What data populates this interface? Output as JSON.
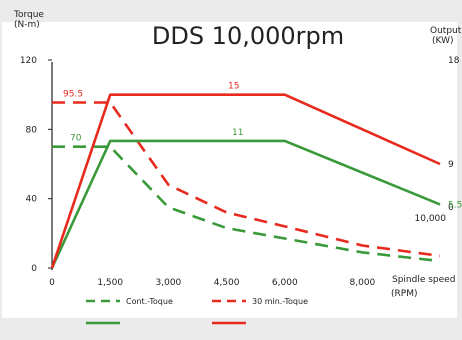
{
  "chart_data": {
    "type": "line",
    "title": "DDS  10,000rpm",
    "y_left": {
      "label_line1": "Torque",
      "label_line2": "(N-m)",
      "range": [
        0,
        120
      ],
      "ticks": [
        "0",
        "40",
        "80",
        "120"
      ]
    },
    "y_right": {
      "label_line1": "Output",
      "label_line2": "(KW)",
      "range": [
        0,
        18
      ],
      "visible_ticks": [
        "0",
        "5.5",
        "9",
        "18"
      ]
    },
    "x_axis": {
      "label_line1": "Spindle speed",
      "label_line2": "(RPM)",
      "range": [
        0,
        10000
      ],
      "ticks": [
        "0",
        "1,500",
        "3,000",
        "4,500",
        "6,000",
        "8,000",
        "10,000"
      ]
    },
    "grid": false,
    "legend_position": "bottom",
    "series": [
      {
        "name": "Cont.-Toque",
        "color": "#3a9a3a",
        "style": "dashed",
        "axis": "left",
        "x": [
          0,
          1500,
          3000,
          4500,
          6000,
          8000,
          10000
        ],
        "y": [
          70,
          70,
          35,
          23,
          17,
          9,
          4
        ]
      },
      {
        "name": "30 min.-Toque",
        "color": "#e82a1e",
        "style": "dashed",
        "axis": "left",
        "x": [
          0,
          1500,
          3000,
          4500,
          6000,
          8000,
          10000
        ],
        "y": [
          95.5,
          95.5,
          48,
          32,
          24,
          13,
          7
        ]
      },
      {
        "name": "",
        "color": "#3a9a3a",
        "style": "solid",
        "axis": "right",
        "x": [
          0,
          1500,
          6000,
          10000
        ],
        "y": [
          0,
          11,
          11,
          5.5
        ]
      },
      {
        "name": "",
        "color": "#e82a1e",
        "style": "solid",
        "axis": "right",
        "x": [
          0,
          1500,
          6000,
          10000
        ],
        "y": [
          0,
          15,
          15,
          9
        ]
      }
    ],
    "annotations": [
      {
        "text": "95.5",
        "color": "#e82a1e"
      },
      {
        "text": "70",
        "color": "#3a9a3a"
      },
      {
        "text": "15",
        "color": "#e82a1e"
      },
      {
        "text": "11",
        "color": "#3a9a3a"
      }
    ]
  }
}
